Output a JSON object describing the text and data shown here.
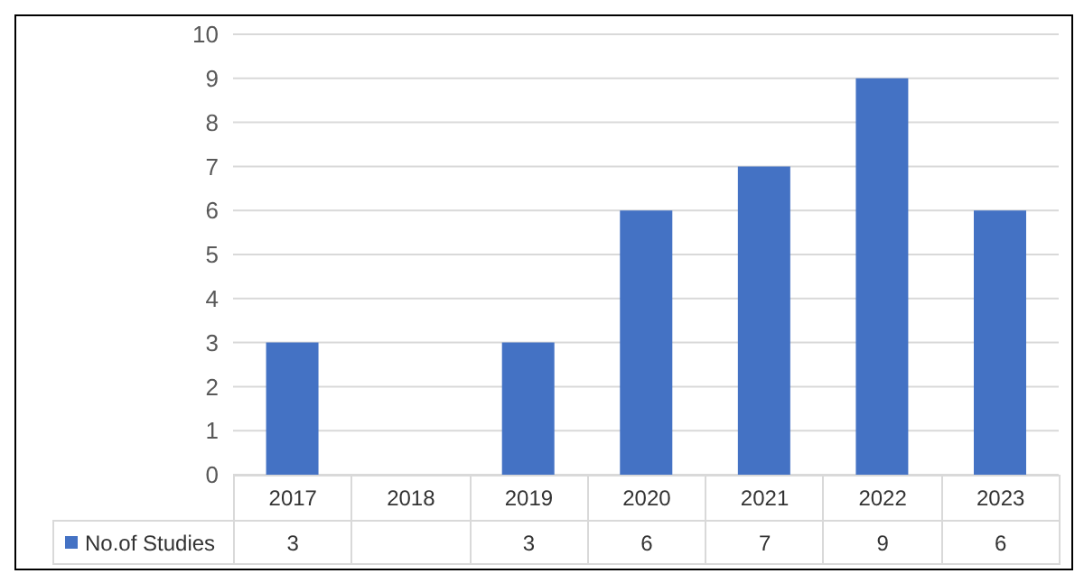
{
  "chart_data": {
    "type": "bar",
    "categories": [
      "2017",
      "2018",
      "2019",
      "2020",
      "2021",
      "2022",
      "2023"
    ],
    "series": [
      {
        "name": "No.of Studies",
        "color": "#4472c4",
        "values": [
          3,
          null,
          3,
          6,
          7,
          9,
          6
        ]
      }
    ],
    "ylim": [
      0,
      10
    ],
    "yticks": [
      0,
      1,
      2,
      3,
      4,
      5,
      6,
      7,
      8,
      9,
      10
    ],
    "grid": "y",
    "legend": "bottom",
    "data_labels": true
  }
}
